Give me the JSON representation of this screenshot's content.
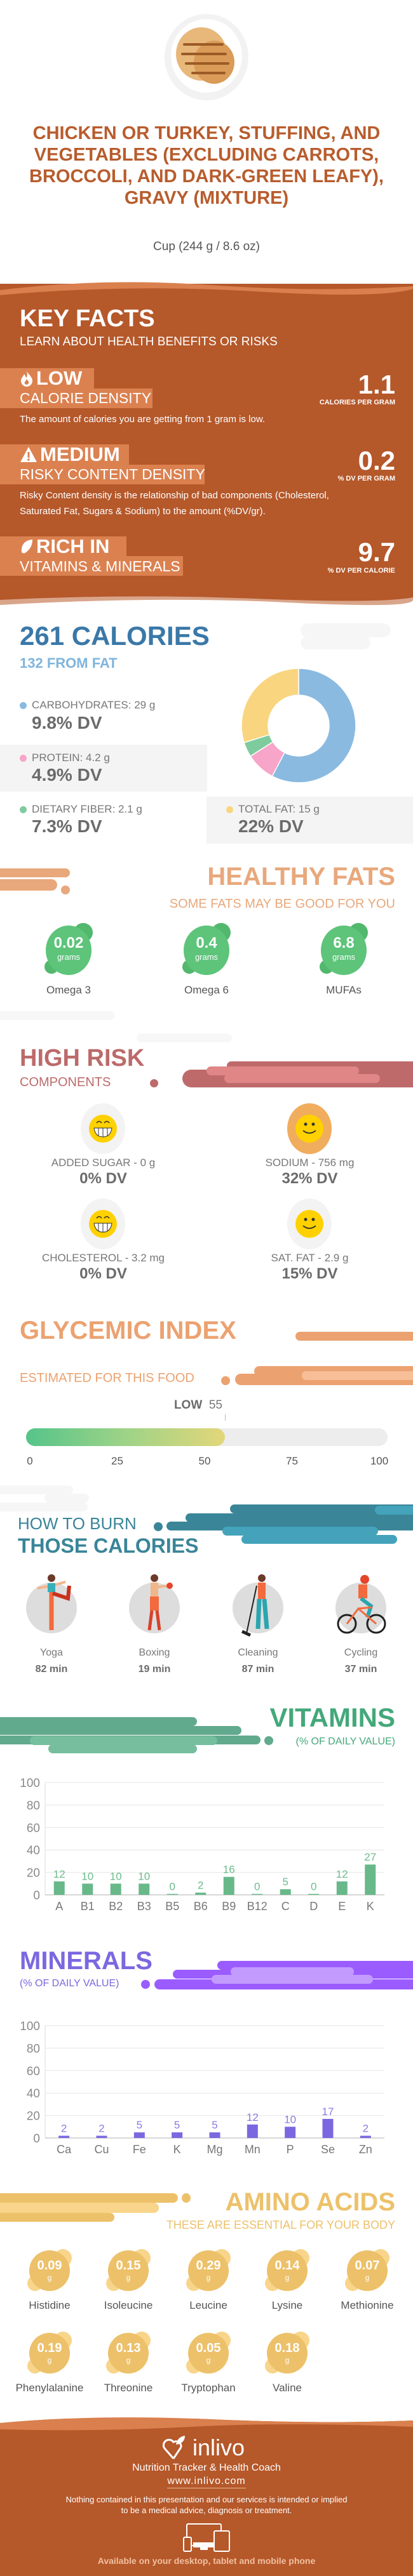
{
  "food": {
    "title": "CHICKEN OR TURKEY, STUFFING, AND VEGETABLES (EXCLUDING CARROTS, BROCCOLI, AND DARK-GREEN LEAFY), GRAVY (MIXTURE)",
    "serving": "Cup (244 g / 8.6 oz)"
  },
  "key_facts": {
    "heading": "KEY FACTS",
    "subheading": "LEARN ABOUT HEALTH BENEFITS OR RISKS",
    "items": [
      {
        "icon": "flame-icon",
        "level": "LOW",
        "kind": "CALORIE DENSITY",
        "value": "1.1",
        "unit": "CALORIES PER GRAM",
        "desc": "The amount of calories you are getting from 1 gram is low."
      },
      {
        "icon": "warning-icon",
        "level": "MEDIUM",
        "kind": "RISKY CONTENT DENSITY",
        "value": "0.2",
        "unit": "% DV PER GRAM",
        "desc": "Risky Content density is the relationship of bad components (Cholesterol, Saturated Fat, Sugars & Sodium) to the amount (%DV/gr)."
      },
      {
        "icon": "leaf-icon",
        "level": "RICH  IN",
        "kind": "VITAMINS & MINERALS",
        "value": "9.7",
        "unit": "% DV PER CALORIE"
      }
    ]
  },
  "calories": {
    "title": "261 CALORIES",
    "from_fat": "132 FROM FAT",
    "macros": [
      {
        "label": "CARBOHYDRATES: 29 g",
        "dv": "9.8% DV",
        "grams": 29,
        "color": "#8BBAE0"
      },
      {
        "label": "PROTEIN: 4.2 g",
        "dv": "4.9% DV",
        "grams": 4.2,
        "color": "#F7A5C9"
      },
      {
        "label": "DIETARY FIBER: 2.1 g",
        "dv": "7.3% DV",
        "grams": 2.1,
        "color": "#7ECB9E"
      },
      {
        "label": "TOTAL FAT: 15 g",
        "dv": "22% DV",
        "grams": 15,
        "color": "#F9D57F"
      }
    ]
  },
  "healthy_fats": {
    "heading": "HEALTHY FATS",
    "subheading": "SOME FATS MAY BE GOOD FOR YOU",
    "items": [
      {
        "value": "0.02",
        "unit": "grams",
        "name": "Omega 3"
      },
      {
        "value": "0.4",
        "unit": "grams",
        "name": "Omega 6"
      },
      {
        "value": "6.8",
        "unit": "grams",
        "name": "MUFAs"
      }
    ]
  },
  "high_risk": {
    "heading": "HIGH RISK",
    "subheading": "COMPONENTS",
    "items": [
      {
        "label": "ADDED SUGAR - 0 g",
        "dv": "0% DV",
        "face": "grin"
      },
      {
        "label": "SODIUM - 756 mg",
        "dv": "32% DV",
        "face": "smile-warn"
      },
      {
        "label": "CHOLESTEROL - 3.2 mg",
        "dv": "0% DV",
        "face": "grin"
      },
      {
        "label": "SAT. FAT - 2.9 g",
        "dv": "15% DV",
        "face": "smile"
      }
    ]
  },
  "glycemic": {
    "heading": "GLYCEMIC INDEX",
    "subheading": "ESTIMATED FOR THIS FOOD",
    "level": "LOW",
    "value": 55,
    "value_label": "55",
    "ticks": [
      "0",
      "25",
      "50",
      "75",
      "100"
    ]
  },
  "burn": {
    "heading_line1": "HOW TO BURN",
    "heading_line2": "THOSE CALORIES",
    "items": [
      {
        "name": "Yoga",
        "time": "82 min"
      },
      {
        "name": "Boxing",
        "time": "19 min"
      },
      {
        "name": "Cleaning",
        "time": "87 min"
      },
      {
        "name": "Cycling",
        "time": "37 min"
      }
    ]
  },
  "chart_data": [
    {
      "type": "bar",
      "title": "VITAMINS",
      "subtitle": "(% OF DAILY VALUE)",
      "categories": [
        "A",
        "B1",
        "B2",
        "B3",
        "B5",
        "B6",
        "B9",
        "B12",
        "C",
        "D",
        "E",
        "K"
      ],
      "values": [
        12,
        10,
        10,
        10,
        0,
        2,
        16,
        0,
        5,
        0,
        12,
        27
      ],
      "yticks": [
        "0",
        "20",
        "40",
        "60",
        "80",
        "100"
      ],
      "ylim": [
        0,
        100
      ],
      "grid": true,
      "color": "#68B889",
      "label_color": "#6DBB8C"
    },
    {
      "type": "bar",
      "title": "MINERALS",
      "subtitle": "(% OF DAILY VALUE)",
      "categories": [
        "Ca",
        "Cu",
        "Fe",
        "K",
        "Mg",
        "Mn",
        "P",
        "Se",
        "Zn"
      ],
      "values": [
        2,
        2,
        5,
        5,
        5,
        12,
        10,
        17,
        2
      ],
      "yticks": [
        "0",
        "20",
        "40",
        "60",
        "80",
        "100"
      ],
      "ylim": [
        0,
        100
      ],
      "grid": true,
      "color": "#7B68E0",
      "label_color": "#8A7BE3"
    }
  ],
  "amino": {
    "heading": "AMINO ACIDS",
    "subheading": "THESE ARE ESSENTIAL FOR YOUR BODY",
    "items": [
      {
        "value": "0.09",
        "unit": "g",
        "name": "Histidine"
      },
      {
        "value": "0.15",
        "unit": "g",
        "name": "Isoleucine"
      },
      {
        "value": "0.29",
        "unit": "g",
        "name": "Leucine"
      },
      {
        "value": "0.14",
        "unit": "g",
        "name": "Lysine"
      },
      {
        "value": "0.07",
        "unit": "g",
        "name": "Methionine"
      },
      {
        "value": "0.19",
        "unit": "g",
        "name": "Phenylalanine"
      },
      {
        "value": "0.13",
        "unit": "g",
        "name": "Threonine"
      },
      {
        "value": "0.05",
        "unit": "g",
        "name": "Tryptophan"
      },
      {
        "value": "0.18",
        "unit": "g",
        "name": "Valine"
      }
    ]
  },
  "footer": {
    "brand": "inlivo",
    "tagline": "Nutrition Tracker & Health Coach",
    "url": "www.inlivo.com",
    "disclaimer_1": "Nothing contained in this presentation and our services is intended or implied",
    "disclaimer_2": "to be a medical advice, diagnosis or treatment.",
    "available": "Available on your desktop, tablet and mobile phone"
  },
  "colors": {
    "brand": "#B5582A",
    "calories": "#3A78A8",
    "healthy_fats": "#E8A87C",
    "high_risk": "#BD6A6A",
    "glycemic": "#EBA270",
    "burn": "#3A8598",
    "vitamins": "#44A87A",
    "minerals": "#7B68E0",
    "amino": "#EDC16A"
  }
}
